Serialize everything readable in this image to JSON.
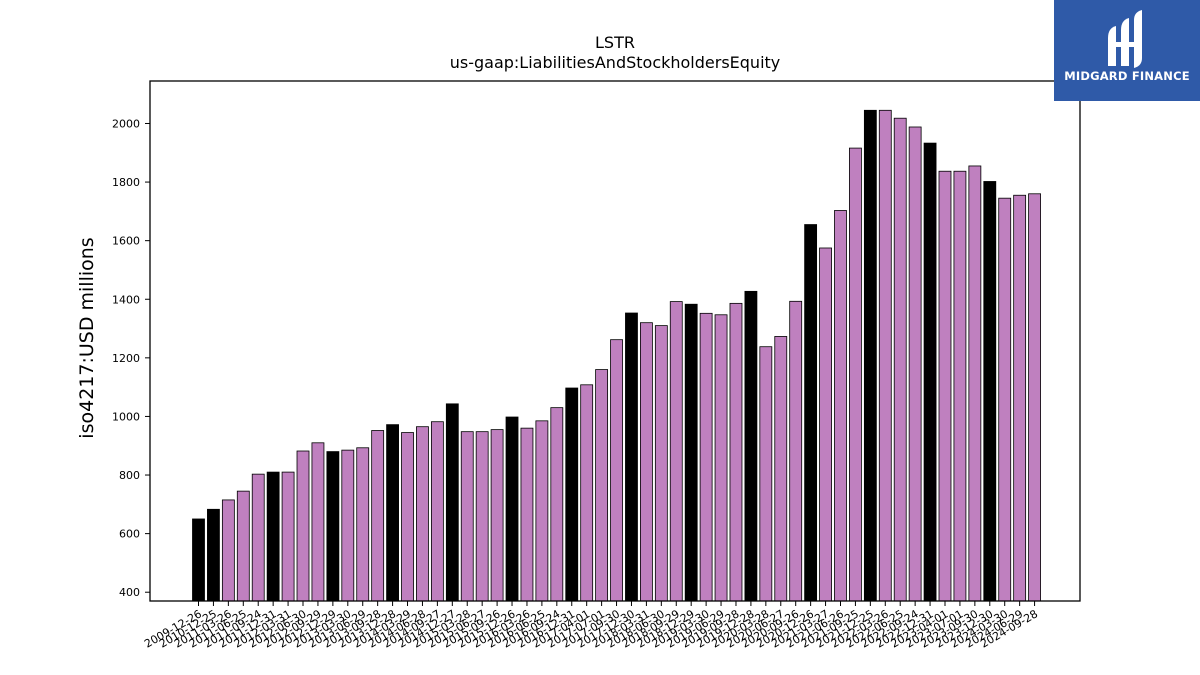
{
  "chart_data": {
    "type": "bar",
    "title": "LSTR",
    "subtitle": "us-gaap:LiabilitiesAndStockholdersEquity",
    "ylabel": "iso4217:USD  millions",
    "ylim": [
      370,
      2145
    ],
    "yticks": [
      400,
      600,
      800,
      1000,
      1200,
      1400,
      1600,
      1800,
      2000
    ],
    "grid": false,
    "colors": {
      "annual": "#000000",
      "quarterly": "#bf80bf"
    },
    "categories": [
      "2009-12-26",
      "2010-12-25",
      "2011-03-26",
      "2011-06-25",
      "2011-09-24",
      "2011-12-31",
      "2012-03-31",
      "2012-06-30",
      "2012-09-29",
      "2012-12-29",
      "2013-03-30",
      "2013-06-29",
      "2013-09-28",
      "2013-12-28",
      "2014-03-29",
      "2014-06-28",
      "2014-09-27",
      "2014-12-27",
      "2015-03-28",
      "2015-06-27",
      "2015-09-26",
      "2015-12-26",
      "2016-03-26",
      "2016-06-25",
      "2016-09-24",
      "2016-12-31",
      "2017-04-01",
      "2017-07-01",
      "2017-09-30",
      "2017-12-30",
      "2018-03-31",
      "2018-06-30",
      "2018-09-29",
      "2018-12-29",
      "2019-03-30",
      "2019-06-29",
      "2019-09-28",
      "2019-12-28",
      "2020-03-28",
      "2020-06-27",
      "2020-09-26",
      "2020-12-26",
      "2021-03-27",
      "2021-06-26",
      "2021-09-25",
      "2021-12-25",
      "2022-03-26",
      "2022-06-25",
      "2022-09-24",
      "2022-12-31",
      "2023-04-01",
      "2023-07-01",
      "2023-09-30",
      "2023-12-30",
      "2024-03-30",
      "2024-06-29",
      "2024-09-28"
    ],
    "tick_labels": [
      "2009-12-26",
      "2010-12-25",
      "2011-03-26",
      "2011-06-25",
      "2011-09-24",
      "2011-12-31",
      "2012-03-31",
      "2012-06-30",
      "2012-09-29",
      "2012-12-29",
      "2013-03-30",
      "2013-06-29",
      "2013-09-28",
      "2013-12-28",
      "2014-03-29",
      "2014-06-28",
      "2014-09-27",
      "2014-12-27",
      "2015-03-28",
      "2015-06-27",
      "2015-09-26",
      "2015-12-26",
      "2016-03-26",
      "2016-06-25",
      "2016-09-24",
      "2016-12-31",
      "2017-04-01",
      "2017-07-01",
      "2017-09-30",
      "2017-12-30",
      "2018-03-31",
      "2018-06-30",
      "2018-09-29",
      "2018-12-29",
      "2019-03-30",
      "2019-06-29",
      "2019-09-28",
      "2019-12-28",
      "2020-03-28",
      "2020-06-27",
      "2020-09-26",
      "2020-12-26",
      "2021-03-27",
      "2021-06-26",
      "2021-09-25",
      "2021-12-25",
      "2022-03-26",
      "2022-06-25",
      "2022-09-24",
      "2022-12-31",
      "2023-04-01",
      "2023-07-01",
      "2023-09-30",
      "2023-12-30",
      "2024-03-30",
      "2024-06-29",
      "2024-09-28"
    ],
    "values": [
      650,
      683,
      715,
      745,
      803,
      810,
      810,
      882,
      910,
      880,
      885,
      893,
      952,
      972,
      945,
      965,
      982,
      1043,
      948,
      948,
      955,
      998,
      960,
      985,
      1030,
      1097,
      1108,
      1160,
      1262,
      1353,
      1320,
      1310,
      1392,
      1383,
      1352,
      1347,
      1386,
      1427,
      1238,
      1273,
      1393,
      1655,
      1575,
      1703,
      1916,
      2045,
      2045,
      2018,
      1988,
      1933,
      1837,
      1837,
      1855,
      1802,
      1745,
      1755,
      1760
    ],
    "bar_kind": [
      "annual",
      "annual",
      "quarterly",
      "quarterly",
      "quarterly",
      "annual",
      "quarterly",
      "quarterly",
      "quarterly",
      "annual",
      "quarterly",
      "quarterly",
      "quarterly",
      "annual",
      "quarterly",
      "quarterly",
      "quarterly",
      "annual",
      "quarterly",
      "quarterly",
      "quarterly",
      "annual",
      "quarterly",
      "quarterly",
      "quarterly",
      "annual",
      "quarterly",
      "quarterly",
      "quarterly",
      "annual",
      "quarterly",
      "quarterly",
      "quarterly",
      "annual",
      "quarterly",
      "quarterly",
      "quarterly",
      "annual",
      "quarterly",
      "quarterly",
      "quarterly",
      "annual",
      "quarterly",
      "quarterly",
      "quarterly",
      "annual",
      "quarterly",
      "quarterly",
      "quarterly",
      "annual",
      "quarterly",
      "quarterly",
      "quarterly",
      "annual",
      "quarterly",
      "quarterly",
      "quarterly"
    ]
  },
  "logo": {
    "text": "MIDGARD FINANCE"
  }
}
